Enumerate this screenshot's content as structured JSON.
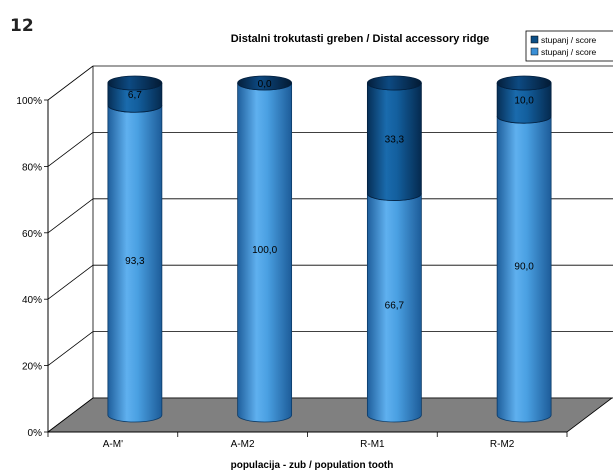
{
  "figure_number": "12",
  "colors": {
    "score0": "#3a8fd6",
    "score1": "#0d4f86",
    "floor": "#808080",
    "grid": "#000000"
  },
  "chart_data": {
    "type": "bar",
    "stacked": true,
    "style": "3d-cylinder",
    "title": "Distalni trokutasti greben / Distal accessory ridge",
    "xlabel": "populacija - zub / population tooth",
    "ylabel": "",
    "categories": [
      "A-M'",
      "A-M2",
      "R-M1",
      "R-M2"
    ],
    "yticks": [
      "0%",
      "20%",
      "40%",
      "60%",
      "80%",
      "100%"
    ],
    "ylim": [
      0,
      100
    ],
    "grid": true,
    "legend": "top-right",
    "series": [
      {
        "name": "stupanj / score 0",
        "legend_text": "stupanj / score",
        "values": [
          93.3,
          100.0,
          66.7,
          90.0
        ],
        "labels": [
          "93,3",
          "100,0",
          "66,7",
          "90,0"
        ],
        "color": "#3a8fd6"
      },
      {
        "name": "stupanj / score 1",
        "legend_text": "stupanj / score",
        "values": [
          6.7,
          0.0,
          33.3,
          10.0
        ],
        "labels": [
          "6,7",
          "0,0",
          "33,3",
          "10,0"
        ],
        "color": "#0d4f86"
      }
    ]
  }
}
